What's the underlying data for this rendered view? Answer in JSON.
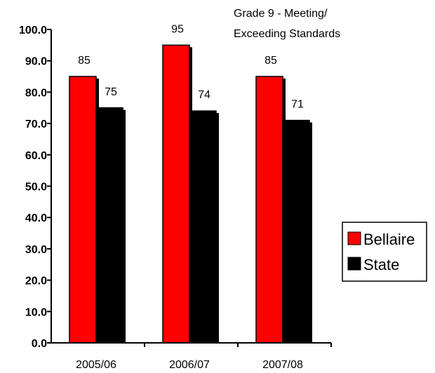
{
  "chart_data": {
    "type": "bar",
    "title_lines": [
      "Grade 9 - Meeting/",
      "Exceeding Standards"
    ],
    "categories": [
      "2005/06",
      "2006/07",
      "2007/08"
    ],
    "series": [
      {
        "name": "Bellaire",
        "values": [
          85,
          95,
          85
        ],
        "labels": [
          "85",
          "95",
          "85"
        ],
        "color": "#ff0000"
      },
      {
        "name": "State",
        "values": [
          75,
          74,
          71
        ],
        "labels": [
          "75",
          "74",
          "71"
        ],
        "color": "#000000"
      }
    ],
    "ylim": [
      0,
      100
    ],
    "yticks": [
      "0.0",
      "10.0",
      "20.0",
      "30.0",
      "40.0",
      "50.0",
      "60.0",
      "70.0",
      "80.0",
      "90.0",
      "100.0"
    ],
    "xlabel": "",
    "ylabel": "",
    "grid": false,
    "legend_position": "right"
  }
}
